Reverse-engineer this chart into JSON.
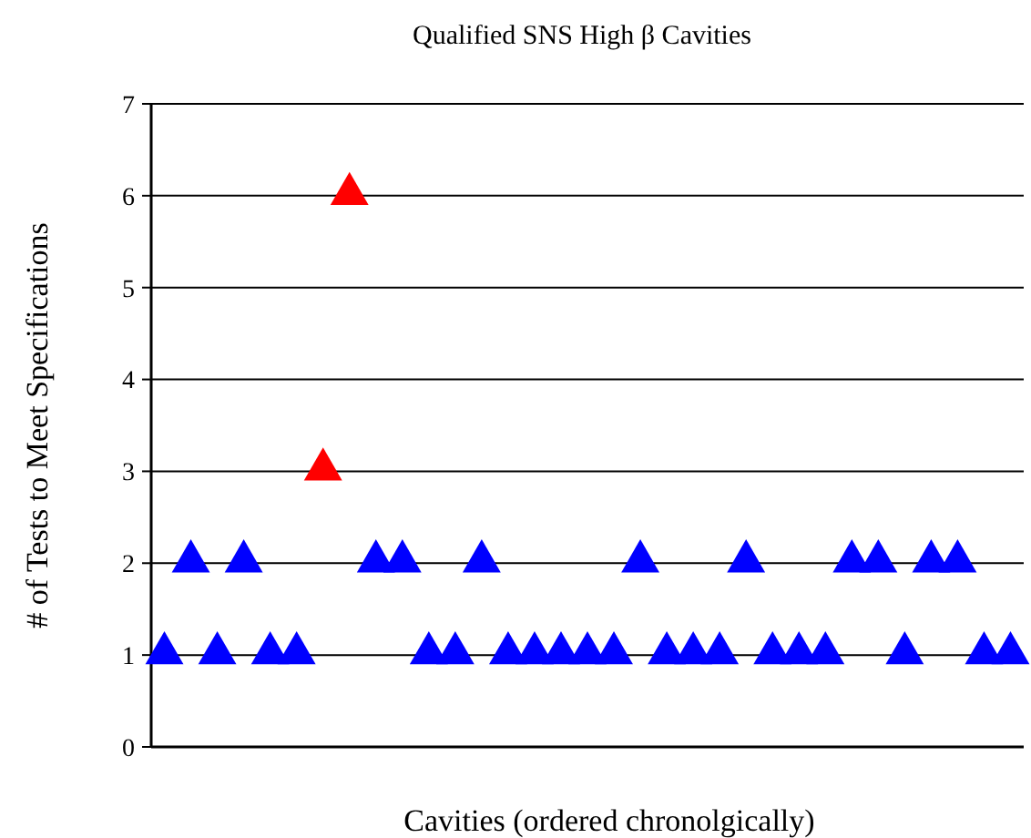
{
  "chart_data": {
    "type": "scatter",
    "title": "Qualified SNS High β Cavities",
    "xlabel": "Cavities (ordered chronolgically)",
    "ylabel": "# of Tests to Meet Specifications",
    "categories": [
      null,
      null,
      null,
      null,
      null,
      null,
      null,
      null,
      null,
      null,
      null,
      null,
      null,
      null,
      null,
      null,
      null,
      null,
      null,
      null,
      null,
      null,
      null,
      null,
      null,
      null,
      null,
      null,
      null,
      null,
      null,
      null,
      null
    ],
    "series": [
      {
        "values": [
          1,
          2,
          1,
          2,
          1,
          1,
          3,
          6,
          2,
          2,
          1,
          1,
          2,
          1,
          1,
          1,
          1,
          1,
          2,
          1,
          1,
          1,
          2,
          1,
          1,
          1,
          2,
          2,
          1,
          2,
          2,
          1,
          1
        ],
        "colors": [
          "#0000ff",
          "#0000ff",
          "#0000ff",
          "#0000ff",
          "#0000ff",
          "#0000ff",
          "#ff0000",
          "#ff0000",
          "#0000ff",
          "#0000ff",
          "#0000ff",
          "#0000ff",
          "#0000ff",
          "#0000ff",
          "#0000ff",
          "#0000ff",
          "#0000ff",
          "#0000ff",
          "#0000ff",
          "#0000ff",
          "#0000ff",
          "#0000ff",
          "#0000ff",
          "#0000ff",
          "#0000ff",
          "#0000ff",
          "#0000ff",
          "#0000ff",
          "#0000ff",
          "#0000ff",
          "#0000ff",
          "#0000ff",
          "#0000ff"
        ]
      }
    ],
    "ylim": [
      0,
      7
    ],
    "yticks": [
      0,
      1,
      2,
      3,
      4,
      5,
      6,
      7
    ],
    "grid": "y",
    "marker": "triangle",
    "legend": false
  }
}
